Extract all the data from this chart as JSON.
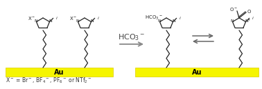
{
  "bg_color": "#ffffff",
  "fig_width": 3.78,
  "fig_height": 1.29,
  "dpi": 100,
  "au_color": "#f5f500",
  "au_edge_color": "#ddcc00",
  "au_label": "Au",
  "au_fontsize": 7,
  "arrow_color": "#888888",
  "arrow_label": "HCO$_3$$^-$",
  "arrow_label_fontsize": 8,
  "footnote": "X$^-$ = Br$^-$, BF$_4$$^-$, PF$_6$$^-$ or NTf$_2$$^-$",
  "footnote_fontsize": 5.5,
  "chain_color": "#222222",
  "ring_color": "#222222",
  "lw": 0.9
}
